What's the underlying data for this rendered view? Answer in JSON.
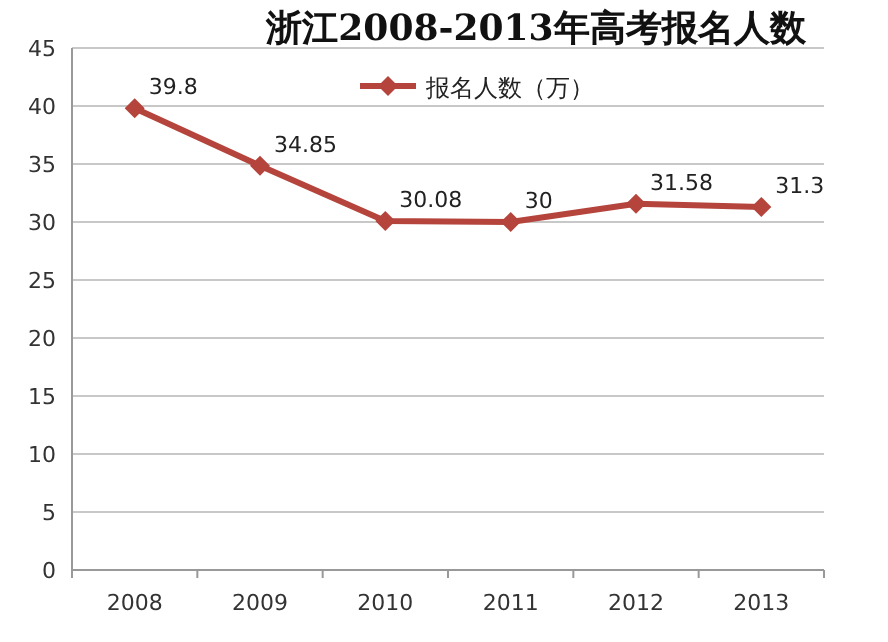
{
  "chart_data": {
    "type": "line",
    "title": "浙江2008-2013年高考报名人数",
    "categories": [
      "2008",
      "2009",
      "2010",
      "2011",
      "2012",
      "2013"
    ],
    "series": [
      {
        "name": "报名人数（万）",
        "color": "#b5443c",
        "values": [
          39.8,
          34.85,
          30.08,
          30,
          31.58,
          31.3
        ]
      }
    ],
    "ylim": [
      0,
      45
    ],
    "yticks": [
      0,
      5,
      10,
      15,
      20,
      25,
      30,
      35,
      40,
      45
    ],
    "grid": "y",
    "legend": "top",
    "marker": "diamond",
    "line_style": "solid",
    "data_labels": true
  }
}
